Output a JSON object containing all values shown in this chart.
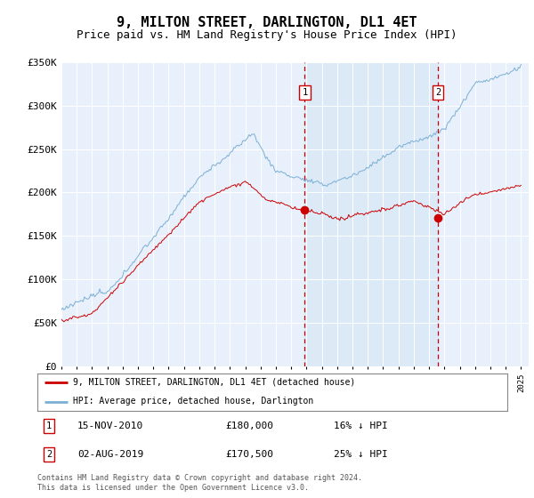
{
  "title": "9, MILTON STREET, DARLINGTON, DL1 4ET",
  "subtitle": "Price paid vs. HM Land Registry's House Price Index (HPI)",
  "title_fontsize": 11,
  "subtitle_fontsize": 9,
  "ylim": [
    0,
    350000
  ],
  "yticks": [
    0,
    50000,
    100000,
    150000,
    200000,
    250000,
    300000,
    350000
  ],
  "ytick_labels": [
    "£0",
    "£50K",
    "£100K",
    "£150K",
    "£200K",
    "£250K",
    "£300K",
    "£350K"
  ],
  "background_color": "#e8f0fb",
  "hpi_color": "#7bafd4",
  "hpi_fill_color": "#dce9f7",
  "price_color": "#cc0000",
  "grid_color": "#ffffff",
  "vline_color": "#cc0000",
  "shade_color": "#dce9f7",
  "sale1_date_num": 2010.88,
  "sale1_price": 180000,
  "sale1_date_str": "15-NOV-2010",
  "sale1_pct": "16% ↓ HPI",
  "sale2_date_num": 2019.58,
  "sale2_price": 170500,
  "sale2_date_str": "02-AUG-2019",
  "sale2_pct": "25% ↓ HPI",
  "legend1_label": "9, MILTON STREET, DARLINGTON, DL1 4ET (detached house)",
  "legend2_label": "HPI: Average price, detached house, Darlington",
  "footnote": "Contains HM Land Registry data © Crown copyright and database right 2024.\nThis data is licensed under the Open Government Licence v3.0.",
  "xstart": 1995,
  "xend": 2025.5
}
